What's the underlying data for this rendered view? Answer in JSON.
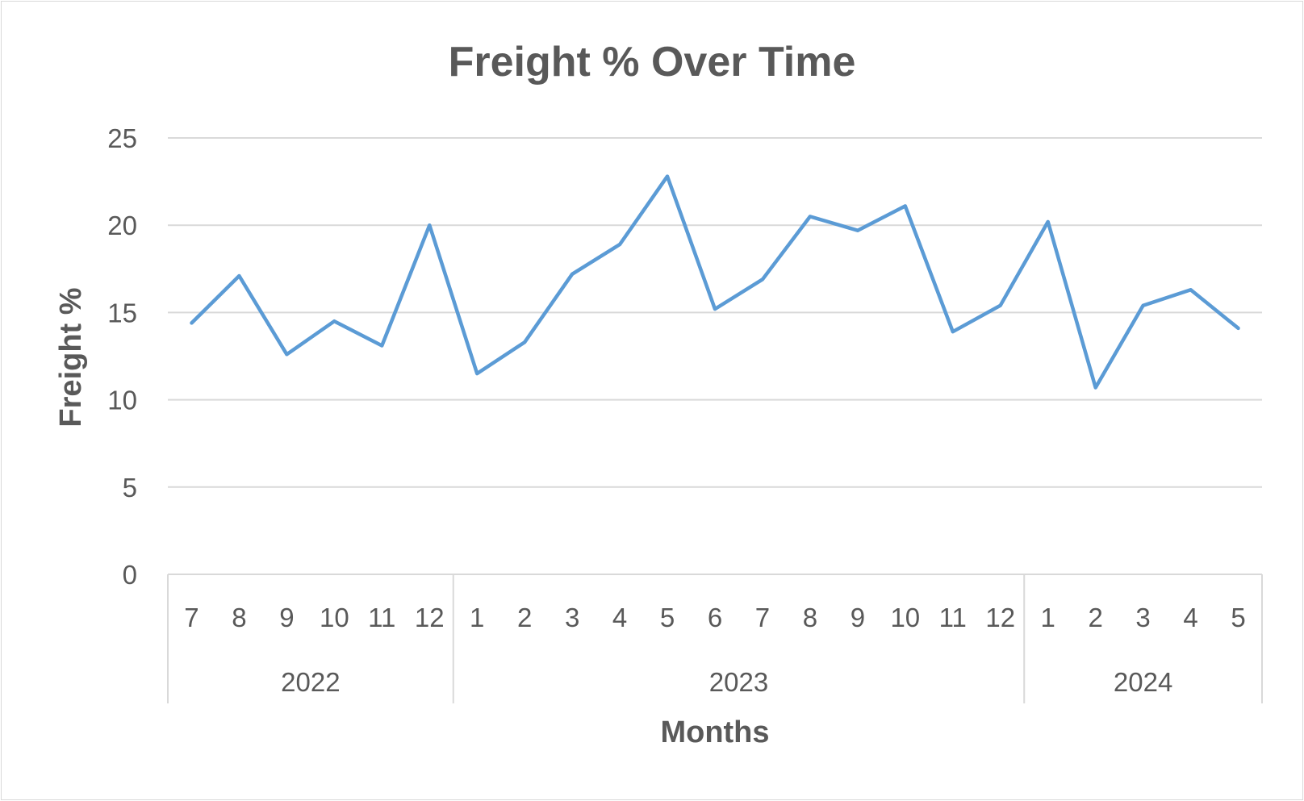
{
  "chart_data": {
    "type": "line",
    "title": "Freight % Over Time",
    "xlabel": "Months",
    "ylabel": "Freight %",
    "ylim": [
      0,
      25
    ],
    "yticks": [
      "0",
      "5",
      "10",
      "15",
      "20",
      "25"
    ],
    "grid": true,
    "categories": [
      "7",
      "8",
      "9",
      "10",
      "11",
      "12",
      "1",
      "2",
      "3",
      "4",
      "5",
      "6",
      "7",
      "8",
      "9",
      "10",
      "11",
      "12",
      "1",
      "2",
      "3",
      "4",
      "5"
    ],
    "groups": [
      {
        "label": "2022",
        "count": 6
      },
      {
        "label": "2023",
        "count": 12
      },
      {
        "label": "2024",
        "count": 5
      }
    ],
    "series": [
      {
        "color": "#5B9BD5",
        "values": [
          14.4,
          17.1,
          12.6,
          14.5,
          13.1,
          20.0,
          11.5,
          13.3,
          17.2,
          18.9,
          22.8,
          15.2,
          16.9,
          20.5,
          19.7,
          21.1,
          13.9,
          15.4,
          20.2,
          10.7,
          15.4,
          16.3,
          14.1
        ]
      }
    ]
  }
}
